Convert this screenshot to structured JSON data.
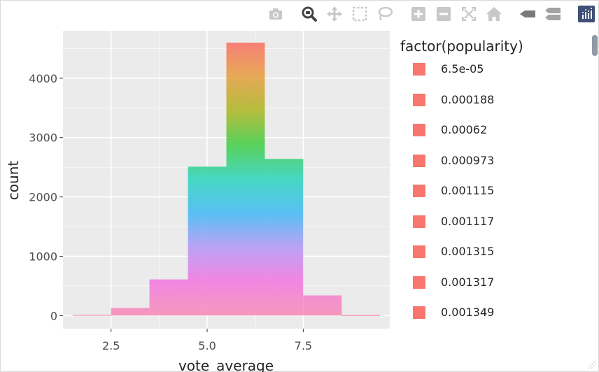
{
  "modebar": {
    "buttons": [
      {
        "name": "camera-icon",
        "label": "Download plot as a png"
      },
      {
        "name": "zoom-icon",
        "label": "Zoom"
      },
      {
        "name": "pan-icon",
        "label": "Pan"
      },
      {
        "name": "box-select-icon",
        "label": "Box Select"
      },
      {
        "name": "lasso-select-icon",
        "label": "Lasso Select"
      },
      {
        "name": "zoom-in-icon",
        "label": "Zoom in"
      },
      {
        "name": "zoom-out-icon",
        "label": "Zoom out"
      },
      {
        "name": "autoscale-icon",
        "label": "Autoscale"
      },
      {
        "name": "reset-axes-icon",
        "label": "Reset axes"
      },
      {
        "name": "hover-closest-icon",
        "label": "Show closest data on hover"
      },
      {
        "name": "hover-compare-icon",
        "label": "Compare data on hover"
      },
      {
        "name": "plotly-logo-icon",
        "label": "Produced with Plotly"
      }
    ],
    "active_color": "#444444",
    "inactive_color": "#c8c8c8"
  },
  "chart_data": {
    "type": "bar",
    "stacked": true,
    "xlabel": "vote_average",
    "ylabel": "count",
    "x_ticks": [
      "2.5",
      "5.0",
      "7.5"
    ],
    "x_tick_values": [
      2.5,
      5.0,
      7.5
    ],
    "y_ticks": [
      "0",
      "1000",
      "2000",
      "3000",
      "4000"
    ],
    "y_tick_values": [
      0,
      1000,
      2000,
      3000,
      4000
    ],
    "xlim": [
      1.25,
      9.75
    ],
    "ylim": [
      -220,
      4800
    ],
    "bins": [
      {
        "center": 2.0,
        "width": 1,
        "total": 15
      },
      {
        "center": 3.0,
        "width": 1,
        "total": 130
      },
      {
        "center": 4.0,
        "width": 1,
        "total": 610
      },
      {
        "center": 5.0,
        "width": 1,
        "total": 2510
      },
      {
        "center": 6.0,
        "width": 1,
        "total": 4600
      },
      {
        "center": 7.0,
        "width": 1,
        "total": 2640
      },
      {
        "center": 8.0,
        "width": 1,
        "total": 340
      },
      {
        "center": 9.0,
        "width": 1,
        "total": 10
      }
    ],
    "panel_background": "#ebebeb",
    "grid": true,
    "gradient_colors": [
      "#f8766d",
      "#e6a34a",
      "#b0b92e",
      "#4ccf4e",
      "#38d6c0",
      "#4cbcf5",
      "#b69cf6",
      "#f27de0",
      "#f592b8"
    ],
    "legend": {
      "title": "factor(popularity)",
      "placement": "right",
      "entries": [
        "6.5e-05",
        "0.000188",
        "0.00062",
        "0.000973",
        "0.001115",
        "0.001117",
        "0.001315",
        "0.001317",
        "0.001349"
      ],
      "swatch_color": "#f8766d"
    }
  }
}
